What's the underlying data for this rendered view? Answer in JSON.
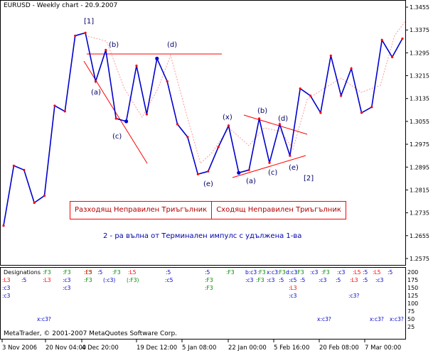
{
  "header": {
    "title": "EURUSD - Weekly chart - 20.9.2007"
  },
  "colors": {
    "price": "#0000cc",
    "wave_ghost": "#ff9999",
    "markup": "#ff0000",
    "point": "#ff0000",
    "indicator_red": "#ff0000",
    "indicator_green": "#008800",
    "indicator_blue": "#0000cc"
  },
  "annotations": {
    "wave_1": "[1]",
    "wave_2": "[2]",
    "left_a": "(a)",
    "left_b": "(b)",
    "left_c": "(c)",
    "left_d": "(d)",
    "left_e": "(e)",
    "x": "(x)",
    "right_a": "(a)",
    "right_b": "(b)",
    "right_c": "(c)",
    "right_d": "(d)",
    "right_e": "(e)"
  },
  "legend": {
    "left": "Разходящ Неправилен Триъгълник",
    "right": "Сходящ Неправилен Триъгълник"
  },
  "note": "2 - ра вълна от Терминален импулс с удължена 1-ва",
  "indicator": {
    "title": "Designations",
    "scale": [
      "200",
      "175",
      "150",
      "125",
      "100",
      "75",
      "50",
      "25"
    ],
    "row1": [
      ":F3",
      ":F3",
      ":F3",
      ":L5",
      ":5",
      ":F3",
      ":L5",
      ":5",
      ":5",
      ":F3",
      "b:c3",
      ":F3",
      "x:c3",
      ":F3",
      "d:c3",
      ":F3",
      ":c3",
      ":F3",
      ":c3",
      ":L5",
      ":5",
      ":L5",
      ":5"
    ],
    "row2": [
      ":L3",
      ":5",
      ":L3",
      ":c3",
      ":F3",
      "(:c3)",
      "(:F3)",
      ":c5",
      ":F3",
      ":c3",
      ":F3",
      ":c3",
      ":5",
      ":c5",
      ":5",
      ":c3",
      ":5",
      ":L3",
      ":5",
      ":c3"
    ],
    "row3": [
      ":c3",
      ":c3",
      ":F3",
      ":L3"
    ],
    "row4": [
      ":c3",
      ":c3",
      ":c3?"
    ],
    "row5": [
      "x:c3?",
      "x:c3?",
      "x:c3?",
      "x:c3?"
    ]
  },
  "copyright": "MetaTrader, © 2001-2007 MetaQuotes Software Corp.",
  "chart_data": {
    "type": "line",
    "title": "EURUSD - Weekly chart - 20.9.2007",
    "xlabel": "",
    "ylabel": "",
    "x_ticks": [
      "3 Nov 2006",
      "20 Nov 04:00",
      "4 Dec 20:00",
      "19 Dec 12:00",
      "5 Jan 08:00",
      "22 Jan 00:00",
      "5 Feb 16:00",
      "20 Feb 08:00",
      "7 Mar 00:00"
    ],
    "y_ticks": [
      1.3455,
      1.3375,
      1.3295,
      1.3215,
      1.3135,
      1.3055,
      1.2975,
      1.2895,
      1.2815,
      1.2735,
      1.2655,
      1.2575
    ],
    "ylim": [
      1.256,
      1.347
    ],
    "series": [
      {
        "values": [
          1.269,
          1.29,
          1.2885,
          1.277,
          1.2795,
          1.311,
          1.309,
          1.3355,
          1.3365,
          1.3195,
          1.3305,
          1.3065,
          1.3055,
          1.325,
          1.308,
          1.3275,
          1.3195,
          1.3045,
          1.3,
          1.287,
          1.288,
          1.2965,
          1.304,
          1.2875,
          1.2885,
          1.3065,
          1.291,
          1.3045,
          1.2935,
          1.317,
          1.3145,
          1.3085,
          1.3285,
          1.3145,
          1.324,
          1.3085,
          1.3105,
          1.334,
          1.328,
          1.3345
        ]
      }
    ],
    "grid": false,
    "legend": "none"
  }
}
